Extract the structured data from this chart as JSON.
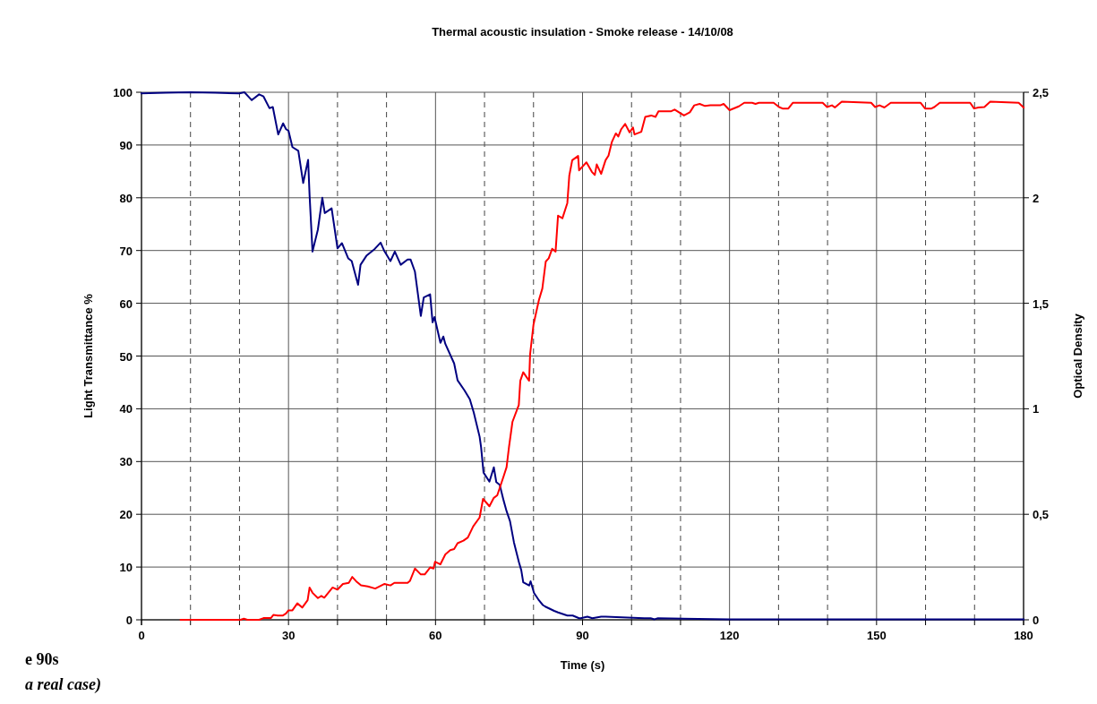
{
  "chart_data": {
    "type": "line",
    "title": "Thermal acoustic insulation - Smoke release - 14/10/08",
    "xlabel": "Time (s)",
    "ylabel": "Light Transmittance %",
    "y2label": "Optical Density",
    "annotations": [
      "e 90s",
      "a real case)"
    ],
    "xlim": [
      0,
      180
    ],
    "xticks": [
      0,
      {
        "value": 10,
        "label": null
      },
      {
        "value": 20,
        "label": null
      },
      30,
      {
        "value": 40,
        "label": null
      },
      {
        "value": 50,
        "label": null
      },
      60,
      {
        "value": 70,
        "label": null
      },
      {
        "value": 80,
        "label": null
      },
      90,
      {
        "value": 100,
        "label": null
      },
      {
        "value": 110,
        "label": null
      },
      120,
      {
        "value": 130,
        "label": null
      },
      {
        "value": 140,
        "label": null
      },
      150,
      {
        "value": 160,
        "label": null
      },
      {
        "value": 170,
        "label": null
      },
      180
    ],
    "ylim": [
      0,
      100
    ],
    "yticks": [
      0,
      10,
      20,
      30,
      40,
      50,
      60,
      70,
      80,
      90,
      100
    ],
    "y2lim": [
      0,
      2.5
    ],
    "y2ticks": [
      0,
      {
        "value": 0.5,
        "label": "0,5"
      },
      1,
      {
        "value": 1.5,
        "label": "1,5"
      },
      2,
      {
        "value": 2.5,
        "label": "2,5"
      }
    ],
    "grid": true,
    "marker": "none",
    "line_style": "solid",
    "series": [
      {
        "color": "#000080",
        "axis": "y",
        "x": [
          0,
          5,
          10,
          15,
          20,
          21,
          22.5,
          24,
          24.9,
          26.1,
          26.8,
          27.9,
          28.9,
          29.5,
          30,
          30.8,
          32,
          33,
          34,
          34.3,
          34.9,
          36,
          36.9,
          37.4,
          38.8,
          40,
          40.9,
          42.2,
          42.9,
          44.2,
          44.7,
          45.9,
          47.6,
          48.8,
          49.5,
          50.8,
          51.7,
          52.9,
          54.3,
          54.9,
          55.8,
          57,
          57.6,
          58.9,
          59.4,
          59.8,
          61,
          61.6,
          62,
          63.8,
          64.5,
          65.9,
          67,
          67.8,
          69,
          69.3,
          69.8,
          71,
          71.9,
          72.4,
          73.1,
          73.9,
          74.5,
          75.2,
          76,
          77,
          77.5,
          77.9,
          79.1,
          79.4,
          80.1,
          81.1,
          81.9,
          82.4,
          84.2,
          85,
          86.9,
          88,
          89.3,
          89.6,
          91,
          92,
          93.8,
          94.7,
          102.6,
          103.9,
          104.7,
          105.4,
          120,
          150,
          180
        ],
        "values": [
          99.8,
          99.9,
          100,
          99.9,
          99.8,
          100,
          98.5,
          99.6,
          99.2,
          97,
          97.2,
          92,
          94.1,
          93,
          92.7,
          89.6,
          88.9,
          82.8,
          87.2,
          80.5,
          69.8,
          74,
          80,
          77.1,
          78,
          70.4,
          71.4,
          68.5,
          68,
          63.5,
          67.3,
          69,
          70.3,
          71.5,
          70,
          68,
          69.8,
          67.3,
          68.3,
          68.3,
          66,
          57.6,
          61.1,
          61.7,
          56.4,
          57.4,
          52.5,
          53.7,
          52.3,
          48.6,
          45.4,
          43.5,
          41.8,
          39.3,
          34.7,
          32.7,
          27.9,
          26.2,
          28.9,
          26.1,
          25.6,
          22.6,
          20.6,
          18.7,
          14.7,
          11,
          9.4,
          7.1,
          6.5,
          7.3,
          5.1,
          3.7,
          2.8,
          2.5,
          1.7,
          1.4,
          0.8,
          0.8,
          0.3,
          0.3,
          0.6,
          0.3,
          0.6,
          0.6,
          0.3,
          0.3,
          0.1,
          0.3,
          0.1,
          0.1,
          0.1
        ]
      },
      {
        "color": "#ff0000",
        "axis": "y2",
        "x": [
          8,
          20.2,
          20.9,
          21.6,
          24,
          24.9,
          26.4,
          26.9,
          27.8,
          28.8,
          29.5,
          30,
          30.8,
          31.8,
          32.8,
          33.9,
          34.3,
          34.9,
          36,
          36.7,
          37.3,
          39,
          40,
          41.1,
          42.3,
          43,
          43.8,
          44.8,
          46.2,
          47.7,
          49.6,
          50.8,
          51.6,
          54.3,
          54.8,
          55.8,
          57,
          57.8,
          58.9,
          59.6,
          59.9,
          61,
          62,
          63,
          63.8,
          64.5,
          65.7,
          66.6,
          67.7,
          69,
          69.7,
          71,
          71.9,
          72.6,
          73.9,
          74.5,
          75,
          75.7,
          77,
          77.3,
          77.9,
          79.1,
          79.3,
          80,
          81.1,
          81.8,
          82.5,
          83.1,
          83.8,
          84.5,
          85,
          85.9,
          86.9,
          87.3,
          87.9,
          89.1,
          89.3,
          90.8,
          91.9,
          92.5,
          92.9,
          93.8,
          94.7,
          95.3,
          96,
          96.8,
          97.3,
          97.9,
          98.7,
          99.6,
          100.3,
          100.6,
          102,
          102.8,
          104,
          104.9,
          105.5,
          108.1,
          108.8,
          110.7,
          111.9,
          112.8,
          113.9,
          115,
          116.1,
          118.1,
          118.8,
          120,
          121.9,
          123,
          124.6,
          125.3,
          126,
          129,
          130.1,
          130.8,
          132,
          132.9,
          139,
          139.9,
          140.9,
          141.5,
          142.9,
          148.9,
          149.7,
          150.6,
          151.6,
          152.9,
          159,
          159.9,
          161.2,
          161.8,
          162.9,
          169.1,
          169.9,
          170.8,
          172,
          173.2,
          179,
          180
        ],
        "values": [
          0,
          0,
          0.005,
          0,
          0,
          0.008,
          0.008,
          0.023,
          0.02,
          0.02,
          0.03,
          0.045,
          0.045,
          0.078,
          0.058,
          0.093,
          0.153,
          0.128,
          0.103,
          0.113,
          0.105,
          0.153,
          0.143,
          0.17,
          0.175,
          0.203,
          0.183,
          0.163,
          0.158,
          0.148,
          0.17,
          0.163,
          0.175,
          0.175,
          0.185,
          0.243,
          0.215,
          0.215,
          0.248,
          0.243,
          0.275,
          0.263,
          0.31,
          0.33,
          0.335,
          0.363,
          0.375,
          0.39,
          0.443,
          0.485,
          0.573,
          0.538,
          0.578,
          0.59,
          0.68,
          0.723,
          0.82,
          0.938,
          1.018,
          1.133,
          1.173,
          1.133,
          1.258,
          1.4,
          1.515,
          1.57,
          1.698,
          1.713,
          1.758,
          1.745,
          1.915,
          1.903,
          1.975,
          2.105,
          2.178,
          2.198,
          2.13,
          2.168,
          2.123,
          2.108,
          2.158,
          2.113,
          2.178,
          2.2,
          2.265,
          2.305,
          2.29,
          2.325,
          2.35,
          2.31,
          2.333,
          2.3,
          2.313,
          2.383,
          2.39,
          2.383,
          2.41,
          2.41,
          2.418,
          2.39,
          2.405,
          2.438,
          2.445,
          2.435,
          2.438,
          2.438,
          2.445,
          2.415,
          2.433,
          2.45,
          2.45,
          2.445,
          2.45,
          2.45,
          2.43,
          2.423,
          2.423,
          2.45,
          2.45,
          2.43,
          2.438,
          2.428,
          2.455,
          2.45,
          2.43,
          2.438,
          2.428,
          2.45,
          2.45,
          2.423,
          2.423,
          2.43,
          2.45,
          2.45,
          2.423,
          2.428,
          2.43,
          2.455,
          2.45,
          2.428
        ]
      }
    ]
  }
}
